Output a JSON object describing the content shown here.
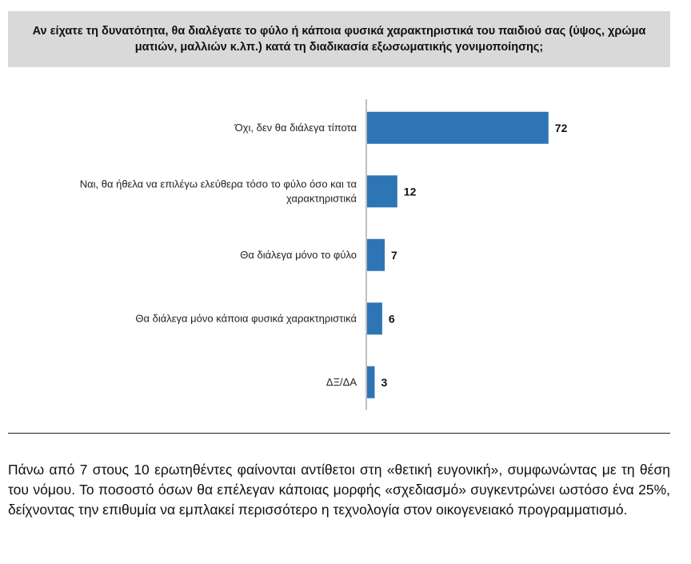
{
  "question": "Αν είχατε τη δυνατότητα, θα διαλέγατε το φύλο ή κάποια φυσικά χαρακτηριστικά του παιδιού σας (ύψος, χρώμα ματιών, μαλλιών κ.λπ.) κατά τη διαδικασία εξωσωματικής γονιμοποίησης;",
  "colors": {
    "bar": "#2e75b6",
    "axis": "#7f7f7f",
    "question_bg": "#d9d9d9"
  },
  "chart_data": {
    "type": "bar",
    "orientation": "horizontal",
    "title": "Αν είχατε τη δυνατότητα, θα διαλέγατε το φύλο ή κάποια φυσικά χαρακτηριστικά του παιδιού σας (ύψος, χρώμα ματιών, μαλλιών κ.λπ.) κατά τη διαδικασία εξωσωματικής γονιμοποίησης;",
    "categories": [
      "Όχι, δεν θα διάλεγα τίποτα",
      "Ναι, θα ήθελα να επιλέγω ελεύθερα τόσο το φύλο όσο και τα χαρακτηριστικά",
      "Θα διάλεγα μόνο το φύλο",
      "Θα διάλεγα μόνο κάποια φυσικά χαρακτηριστικά",
      "ΔΞ/ΔΑ"
    ],
    "label_lines": [
      [
        "Όχι, δεν θα διάλεγα τίποτα"
      ],
      [
        "Ναι, θα ήθελα να επιλέγω ελεύθερα τόσο το φύλο όσο και τα",
        "χαρακτηριστικά"
      ],
      [
        "Θα διάλεγα μόνο το φύλο"
      ],
      [
        "Θα διάλεγα μόνο κάποια φυσικά χαρακτηριστικά"
      ],
      [
        "ΔΞ/ΔΑ"
      ]
    ],
    "values": [
      72,
      12,
      7,
      6,
      3
    ],
    "xlim": [
      0,
      100
    ],
    "xlabel": "",
    "ylabel": "",
    "grid": false,
    "legend": "none"
  },
  "paragraph": "Πάνω από 7 στους 10 ερωτηθέντες φαίνονται αντίθετοι στη «θετική ευγονική», συμφωνώντας με τη θέση του νόμου. Το ποσοστό όσων θα επέλεγαν κάποιας μορφής «σχεδιασμό» συγκεντρώνει ωστόσο ένα 25%, δείχνοντας την επιθυμία να εμπλακεί περισσότερο η τεχνολογία στον οικογενειακό προγραμματισμό."
}
